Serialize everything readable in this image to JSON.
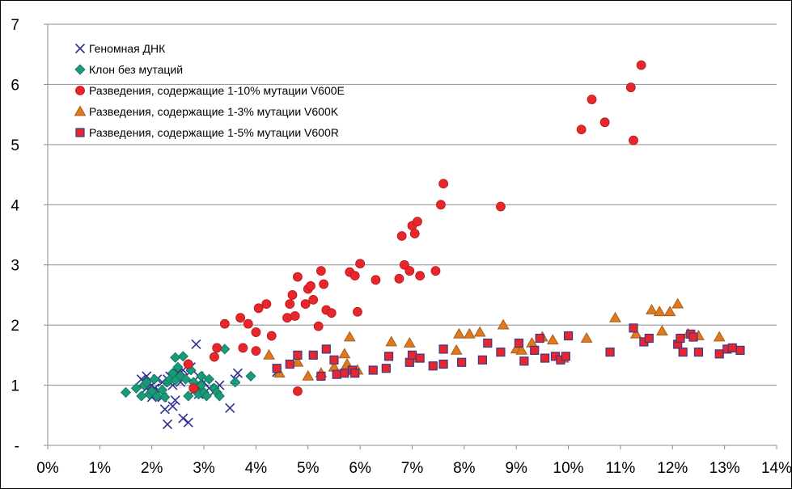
{
  "chart_data": {
    "type": "scatter",
    "title": "",
    "xlabel": "",
    "ylabel": "",
    "xlim": [
      0,
      14
    ],
    "ylim": [
      0,
      7
    ],
    "grid": true,
    "legend_position": "top-left",
    "x_tick_labels": [
      "0%",
      "1%",
      "2%",
      "3%",
      "4%",
      "5%",
      "6%",
      "7%",
      "8%",
      "9%",
      "10%",
      "11%",
      "12%",
      "13%",
      "14%"
    ],
    "y_tick_labels": [
      "-",
      "1",
      "2",
      "3",
      "4",
      "5",
      "6",
      "7"
    ],
    "series": [
      {
        "name": "Геномная ДНК",
        "marker": "x",
        "color": "#2e3192",
        "points": [
          [
            1.8,
            1.1
          ],
          [
            1.9,
            1.15
          ],
          [
            1.85,
            1.05
          ],
          [
            2.0,
            1.0
          ],
          [
            2.05,
            0.95
          ],
          [
            2.1,
            0.85
          ],
          [
            2.15,
            0.9
          ],
          [
            2.2,
            1.05
          ],
          [
            2.3,
            1.1
          ],
          [
            2.25,
            0.6
          ],
          [
            2.3,
            0.35
          ],
          [
            2.4,
            0.65
          ],
          [
            2.45,
            0.75
          ],
          [
            2.6,
            0.45
          ],
          [
            2.7,
            0.38
          ],
          [
            2.8,
            0.9
          ],
          [
            2.85,
            1.0
          ],
          [
            2.9,
            1.15
          ],
          [
            2.5,
            1.2
          ],
          [
            2.6,
            1.25
          ],
          [
            2.75,
            1.3
          ],
          [
            2.85,
            1.68
          ],
          [
            3.0,
            1.05
          ],
          [
            3.1,
            0.95
          ],
          [
            3.2,
            0.9
          ],
          [
            3.3,
            1.0
          ],
          [
            3.5,
            0.62
          ],
          [
            3.6,
            1.1
          ],
          [
            3.65,
            1.2
          ],
          [
            1.95,
            0.9
          ],
          [
            2.0,
            0.8
          ],
          [
            2.1,
            1.1
          ],
          [
            2.35,
            1.15
          ],
          [
            2.55,
            1.05
          ],
          [
            1.9,
            0.95
          ],
          [
            2.2,
            0.8
          ],
          [
            2.4,
            1.0
          ],
          [
            2.65,
            1.15
          ],
          [
            2.9,
            0.85
          ],
          [
            4.4,
            1.22
          ]
        ]
      },
      {
        "name": "Клон без мутаций",
        "marker": "diamond",
        "color": "#1a9a7a",
        "points": [
          [
            1.5,
            0.88
          ],
          [
            1.7,
            0.95
          ],
          [
            1.8,
            0.82
          ],
          [
            1.85,
            1.0
          ],
          [
            1.9,
            1.05
          ],
          [
            1.95,
            0.85
          ],
          [
            2.0,
            0.9
          ],
          [
            2.05,
            1.1
          ],
          [
            2.1,
            0.82
          ],
          [
            2.2,
            0.92
          ],
          [
            2.25,
            0.8
          ],
          [
            2.3,
            1.05
          ],
          [
            2.35,
            1.1
          ],
          [
            2.4,
            1.2
          ],
          [
            2.45,
            1.46
          ],
          [
            2.5,
            1.3
          ],
          [
            2.55,
            1.15
          ],
          [
            2.6,
            1.48
          ],
          [
            2.65,
            1.1
          ],
          [
            2.7,
            1.35
          ],
          [
            2.75,
            1.25
          ],
          [
            2.8,
            1.05
          ],
          [
            2.85,
            0.9
          ],
          [
            2.9,
            0.85
          ],
          [
            2.95,
            1.0
          ],
          [
            3.0,
            0.88
          ],
          [
            3.05,
            0.82
          ],
          [
            3.1,
            1.1
          ],
          [
            3.2,
            0.95
          ],
          [
            3.25,
            0.88
          ],
          [
            3.3,
            0.82
          ],
          [
            3.4,
            1.6
          ],
          [
            3.6,
            1.05
          ],
          [
            3.9,
            1.15
          ],
          [
            2.45,
            1.08
          ],
          [
            2.7,
            0.82
          ],
          [
            2.95,
            1.15
          ]
        ]
      },
      {
        "name": "Разведения, содержащие 1-10% мутации V600E",
        "marker": "circle",
        "color": "#e8262c",
        "points": [
          [
            2.7,
            1.35
          ],
          [
            2.8,
            0.95
          ],
          [
            3.2,
            1.47
          ],
          [
            3.25,
            1.62
          ],
          [
            3.4,
            2.02
          ],
          [
            3.7,
            2.12
          ],
          [
            3.75,
            1.62
          ],
          [
            3.85,
            2.02
          ],
          [
            4.0,
            1.57
          ],
          [
            4.0,
            1.88
          ],
          [
            4.05,
            2.28
          ],
          [
            4.2,
            2.35
          ],
          [
            4.3,
            1.82
          ],
          [
            4.6,
            2.12
          ],
          [
            4.65,
            2.35
          ],
          [
            4.7,
            2.5
          ],
          [
            4.75,
            2.15
          ],
          [
            4.8,
            2.8
          ],
          [
            4.8,
            0.9
          ],
          [
            4.95,
            2.35
          ],
          [
            5.0,
            2.6
          ],
          [
            5.05,
            2.65
          ],
          [
            5.1,
            2.42
          ],
          [
            5.2,
            1.98
          ],
          [
            5.25,
            2.9
          ],
          [
            5.3,
            2.68
          ],
          [
            5.35,
            2.25
          ],
          [
            5.45,
            2.2
          ],
          [
            5.8,
            2.88
          ],
          [
            5.9,
            2.82
          ],
          [
            5.95,
            2.22
          ],
          [
            6.0,
            3.02
          ],
          [
            6.3,
            2.75
          ],
          [
            6.75,
            2.77
          ],
          [
            6.8,
            3.48
          ],
          [
            6.85,
            3.0
          ],
          [
            6.95,
            2.9
          ],
          [
            7.0,
            3.65
          ],
          [
            7.05,
            3.52
          ],
          [
            7.1,
            3.72
          ],
          [
            7.15,
            2.82
          ],
          [
            7.45,
            2.9
          ],
          [
            7.55,
            4.0
          ],
          [
            7.6,
            4.35
          ],
          [
            8.7,
            3.97
          ],
          [
            10.25,
            5.25
          ],
          [
            10.45,
            5.75
          ],
          [
            10.7,
            5.37
          ],
          [
            11.2,
            5.95
          ],
          [
            11.25,
            5.07
          ],
          [
            11.4,
            6.32
          ]
        ]
      },
      {
        "name": "Разведения, содержащие 1-3% мутации  V600K",
        "marker": "triangle",
        "color": "#a85a1e",
        "fill": "#e07a1a",
        "points": [
          [
            4.25,
            1.5
          ],
          [
            4.45,
            1.2
          ],
          [
            4.8,
            1.38
          ],
          [
            5.0,
            1.15
          ],
          [
            5.25,
            1.2
          ],
          [
            5.5,
            1.3
          ],
          [
            5.7,
            1.52
          ],
          [
            5.75,
            1.35
          ],
          [
            5.8,
            1.8
          ],
          [
            5.95,
            1.25
          ],
          [
            6.6,
            1.72
          ],
          [
            6.95,
            1.7
          ],
          [
            7.05,
            1.45
          ],
          [
            7.85,
            1.58
          ],
          [
            7.9,
            1.85
          ],
          [
            8.1,
            1.85
          ],
          [
            8.3,
            1.88
          ],
          [
            8.75,
            2.0
          ],
          [
            9.0,
            1.6
          ],
          [
            9.1,
            1.58
          ],
          [
            9.3,
            1.7
          ],
          [
            9.5,
            1.8
          ],
          [
            9.7,
            1.75
          ],
          [
            9.9,
            1.45
          ],
          [
            10.35,
            1.78
          ],
          [
            10.9,
            2.12
          ],
          [
            11.3,
            1.85
          ],
          [
            11.6,
            2.25
          ],
          [
            11.75,
            2.22
          ],
          [
            11.8,
            1.9
          ],
          [
            11.95,
            2.22
          ],
          [
            12.1,
            2.35
          ],
          [
            12.3,
            1.85
          ],
          [
            12.5,
            1.82
          ],
          [
            12.9,
            1.8
          ]
        ]
      },
      {
        "name": "Разведения, содержащие 1-5% мутации  V600R",
        "marker": "square",
        "color": "#e8262c",
        "stroke": "#3a3a8c",
        "points": [
          [
            4.4,
            1.28
          ],
          [
            4.65,
            1.35
          ],
          [
            4.8,
            1.5
          ],
          [
            5.1,
            1.5
          ],
          [
            5.25,
            1.15
          ],
          [
            5.35,
            1.6
          ],
          [
            5.5,
            1.42
          ],
          [
            5.55,
            1.18
          ],
          [
            5.7,
            1.2
          ],
          [
            5.85,
            1.25
          ],
          [
            5.9,
            1.2
          ],
          [
            6.25,
            1.25
          ],
          [
            6.5,
            1.28
          ],
          [
            6.55,
            1.48
          ],
          [
            6.95,
            1.38
          ],
          [
            7.0,
            1.5
          ],
          [
            7.15,
            1.45
          ],
          [
            7.4,
            1.32
          ],
          [
            7.6,
            1.6
          ],
          [
            7.6,
            1.35
          ],
          [
            7.95,
            1.38
          ],
          [
            8.35,
            1.42
          ],
          [
            8.45,
            1.7
          ],
          [
            8.7,
            1.55
          ],
          [
            9.05,
            1.7
          ],
          [
            9.15,
            1.4
          ],
          [
            9.35,
            1.58
          ],
          [
            9.45,
            1.78
          ],
          [
            9.55,
            1.45
          ],
          [
            9.75,
            1.48
          ],
          [
            9.85,
            1.42
          ],
          [
            9.95,
            1.48
          ],
          [
            10.0,
            1.82
          ],
          [
            10.8,
            1.55
          ],
          [
            11.25,
            1.95
          ],
          [
            11.45,
            1.72
          ],
          [
            11.55,
            1.78
          ],
          [
            12.1,
            1.68
          ],
          [
            12.15,
            1.78
          ],
          [
            12.2,
            1.55
          ],
          [
            12.35,
            1.85
          ],
          [
            12.4,
            1.8
          ],
          [
            12.5,
            1.55
          ],
          [
            12.9,
            1.52
          ],
          [
            13.05,
            1.6
          ],
          [
            13.15,
            1.62
          ],
          [
            13.3,
            1.58
          ]
        ]
      }
    ]
  }
}
